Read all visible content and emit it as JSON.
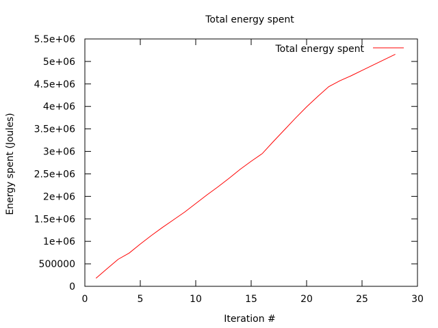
{
  "chart_data": {
    "type": "line",
    "title": "Total energy spent",
    "xlabel": "Iteration #",
    "ylabel": "Energy spent (Joules)",
    "xlim": [
      0,
      30
    ],
    "ylim": [
      0,
      5500000
    ],
    "x_ticks": [
      0,
      5,
      10,
      15,
      20,
      25,
      30
    ],
    "x_tick_labels": [
      "0",
      "5",
      "10",
      "15",
      "20",
      "25",
      "30"
    ],
    "y_ticks": [
      0,
      500000,
      1000000,
      1500000,
      2000000,
      2500000,
      3000000,
      3500000,
      4000000,
      4500000,
      5000000,
      5500000
    ],
    "y_tick_labels": [
      "0",
      "500000",
      "1e+06",
      "1.5e+06",
      "2e+06",
      "2.5e+06",
      "3e+06",
      "3.5e+06",
      "4e+06",
      "4.5e+06",
      "5e+06",
      "5.5e+06"
    ],
    "grid": false,
    "legend_position": "top-right",
    "series": [
      {
        "name": "Total energy spent",
        "color": "#ff0000",
        "x": [
          1,
          2,
          3,
          4,
          5,
          6,
          7,
          8,
          9,
          10,
          11,
          12,
          13,
          14,
          15,
          16,
          17,
          18,
          19,
          20,
          21,
          22,
          23,
          24,
          25,
          26,
          27,
          28
        ],
        "y": [
          180000,
          390000,
          600000,
          740000,
          940000,
          1130000,
          1310000,
          1480000,
          1650000,
          1840000,
          2030000,
          2210000,
          2400000,
          2600000,
          2780000,
          2950000,
          3220000,
          3480000,
          3740000,
          3990000,
          4220000,
          4440000,
          4570000,
          4680000,
          4800000,
          4920000,
          5040000,
          5160000
        ]
      }
    ]
  }
}
